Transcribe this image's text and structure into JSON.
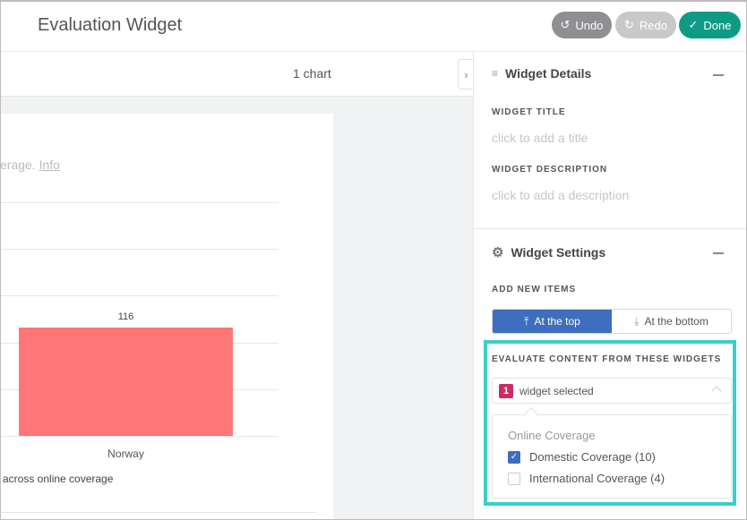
{
  "header": {
    "title": "Evaluation Widget",
    "undo": "Undo",
    "redo": "Redo",
    "done": "Done",
    "done_color": "#0e9b86"
  },
  "canvas": {
    "chart_count": "1 chart",
    "description_fragment": "erage.",
    "info_link": "Info",
    "footer_text": "across online coverage"
  },
  "chart_data": {
    "type": "bar",
    "categories": [
      "Norway"
    ],
    "values": [
      116
    ],
    "data_labels": [
      "116"
    ],
    "ylim": [
      0,
      250
    ],
    "grid": true,
    "bar_color": "#ff7676"
  },
  "panel": {
    "details": {
      "title": "Widget Details",
      "title_label": "WIDGET TITLE",
      "title_placeholder": "click to add a title",
      "desc_label": "WIDGET DESCRIPTION",
      "desc_placeholder": "click to add a description"
    },
    "settings": {
      "title": "Widget Settings",
      "add_label": "ADD NEW ITEMS",
      "top": "At the top",
      "bottom": "At the bottom",
      "selected_option": "At the top"
    },
    "evaluate": {
      "label": "EVALUATE CONTENT FROM THESE WIDGETS",
      "count": "1",
      "selected_text": "widget selected",
      "group": "Online Coverage",
      "options": [
        {
          "label": "Domestic Coverage (10)",
          "checked": true
        },
        {
          "label": "International Coverage (4)",
          "checked": false
        }
      ],
      "highlight_color": "#38d0c8"
    }
  }
}
